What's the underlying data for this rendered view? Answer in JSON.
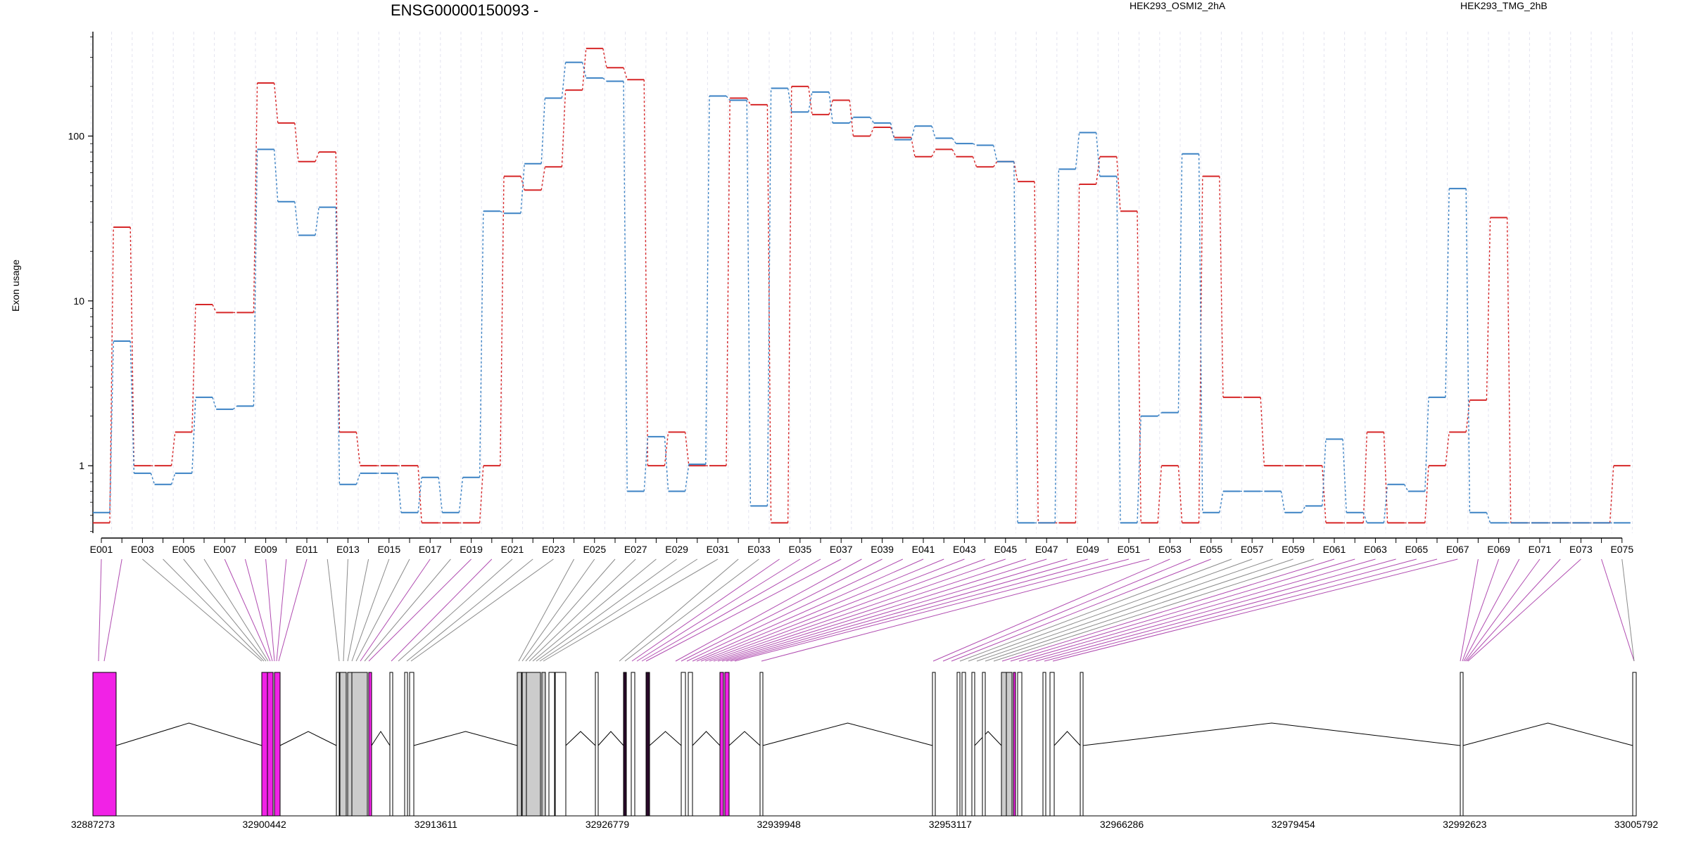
{
  "chart_data": {
    "type": "line",
    "title": "ENSG00000150093 -",
    "ylabel": "Exon usage",
    "xlabel": "",
    "y_scale": "log",
    "ylim": [
      0.39,
      430
    ],
    "y_ticks": [
      1,
      10,
      100
    ],
    "y_tick_labels": [
      "1",
      "10",
      "100"
    ],
    "legend_placement": "top",
    "grid": "vertical dashed lines at exon boundaries",
    "exons": [
      "E001",
      "E002",
      "E003",
      "E004",
      "E005",
      "E006",
      "E007",
      "E008",
      "E009",
      "E010",
      "E011",
      "E012",
      "E013",
      "E014",
      "E015",
      "E016",
      "E017",
      "E018",
      "E019",
      "E020",
      "E021",
      "E022",
      "E023",
      "E024",
      "E025",
      "E026",
      "E027",
      "E028",
      "E029",
      "E030",
      "E031",
      "E032",
      "E033",
      "E034",
      "E035",
      "E036",
      "E037",
      "E038",
      "E039",
      "E040",
      "E041",
      "E042",
      "E043",
      "E044",
      "E045",
      "E046",
      "E047",
      "E048",
      "E049",
      "E050",
      "E051",
      "E052",
      "E053",
      "E054",
      "E055",
      "E056",
      "E057",
      "E058",
      "E059",
      "E060",
      "E061",
      "E062",
      "E063",
      "E064",
      "E065",
      "E066",
      "E067",
      "E068",
      "E069",
      "E070",
      "E071",
      "E072",
      "E073",
      "E074",
      "E075"
    ],
    "x_tick_labels": [
      "E001",
      "E003",
      "E005",
      "E007",
      "E009",
      "E011",
      "E013",
      "E015",
      "E017",
      "E019",
      "E021",
      "E023",
      "E025",
      "E027",
      "E029",
      "E031",
      "E033",
      "E035",
      "E037",
      "E039",
      "E041",
      "E043",
      "E045",
      "E047",
      "E049",
      "E051",
      "E053",
      "E055",
      "E057",
      "E059",
      "E061",
      "E063",
      "E065",
      "E067",
      "E069",
      "E071",
      "E073",
      "E075"
    ],
    "series": [
      {
        "name": "HEK293_OSMI2_2hA",
        "color": "#d62728",
        "values": [
          0.45,
          28,
          1,
          1,
          1.6,
          9.5,
          8.5,
          8.5,
          210,
          120,
          70,
          80,
          1.6,
          1,
          1,
          1,
          0.45,
          0.45,
          0.45,
          1,
          57,
          47,
          65,
          190,
          340,
          260,
          220,
          1,
          1.6,
          1,
          1,
          170,
          155,
          0.45,
          200,
          135,
          165,
          100,
          113,
          98,
          75,
          83,
          75,
          65,
          70,
          53,
          0.45,
          0.45,
          51,
          75,
          35,
          0.45,
          1,
          0.45,
          57,
          2.6,
          2.6,
          1,
          1,
          1,
          0.45,
          0.45,
          1.6,
          0.45,
          0.45,
          1,
          1.6,
          2.5,
          32,
          0.45,
          0.45,
          0.45,
          0.45,
          0.45,
          1
        ]
      },
      {
        "name": "HEK293_TMG_2hB",
        "color": "#3b82c4",
        "values": [
          0.52,
          5.7,
          0.9,
          0.77,
          0.9,
          2.6,
          2.2,
          2.3,
          83,
          40,
          25,
          37,
          0.77,
          0.9,
          0.9,
          0.52,
          0.85,
          0.52,
          0.85,
          35,
          34,
          68,
          170,
          280,
          225,
          215,
          0.7,
          1.5,
          0.7,
          1.02,
          175,
          165,
          0.57,
          195,
          140,
          185,
          120,
          130,
          120,
          95,
          115,
          97,
          90,
          88,
          70,
          0.45,
          0.45,
          63,
          105,
          57,
          0.45,
          2,
          2.1,
          78,
          0.52,
          0.7,
          0.7,
          0.7,
          0.52,
          0.57,
          1.45,
          0.52,
          0.45,
          0.77,
          0.7,
          2.6,
          48,
          0.52,
          0.45,
          0.45,
          0.45,
          0.45,
          0.45,
          0.45,
          0.45
        ]
      }
    ],
    "genomic_axis": {
      "labels": [
        "32887273",
        "32900442",
        "32913611",
        "32926779",
        "32939948",
        "32953117",
        "32966286",
        "32979454",
        "32992623",
        "33005792"
      ],
      "start": 32887273,
      "end": 33005792
    },
    "exon_highlight": {
      "highlight_color": "#f122e6",
      "normal_color": "#cccccc"
    }
  }
}
